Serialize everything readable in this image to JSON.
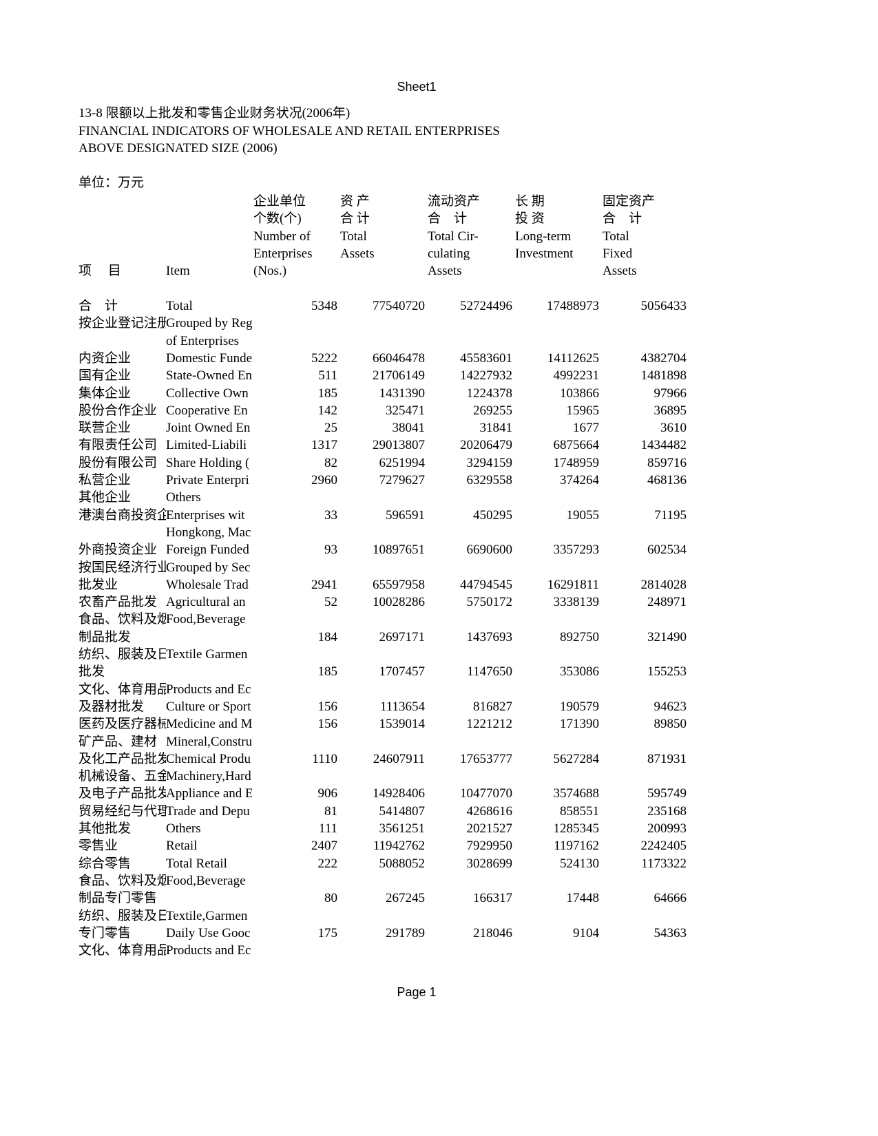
{
  "sheet_title": "Sheet1",
  "footer": "Page 1",
  "title_cn": "13-8 限额以上批发和零售企业财务状况(2006年)",
  "title_en_1": "FINANCIAL INDICATORS OF WHOLESALE AND RETAIL ENTERPRISES",
  "title_en_2": "ABOVE DESIGNATED SIZE (2006)",
  "unit": "单位：万元",
  "header": {
    "item_cn": "项　 目",
    "item_en": "Item",
    "columns": [
      {
        "lines": [
          "企业单位",
          "个数(个)",
          "Number of",
          "Enterprises",
          "(Nos.)"
        ]
      },
      {
        "lines": [
          "资 产",
          "合 计",
          "Total",
          "Assets",
          ""
        ]
      },
      {
        "lines": [
          "流动资产",
          "合　计",
          "Total Cir-",
          "culating",
          "Assets"
        ]
      },
      {
        "lines": [
          "长 期",
          "投 资",
          "Long-term",
          "Investment",
          ""
        ]
      },
      {
        "lines": [
          "固定资产",
          "合　计",
          "Total",
          "Fixed",
          "Assets"
        ]
      }
    ]
  },
  "rows": [
    {
      "cn": "合　计",
      "en": "Total",
      "values": [
        "5348",
        "77540720",
        "52724496",
        "17488973",
        "5056433"
      ]
    },
    {
      "cn": "按企业登记注册",
      "en": "Grouped by Reg",
      "values": []
    },
    {
      "cn": "",
      "en": "of Enterprises",
      "values": []
    },
    {
      "cn": "内资企业",
      "en": "Domestic Funde",
      "values": [
        "5222",
        "66046478",
        "45583601",
        "14112625",
        "4382704"
      ]
    },
    {
      "cn": "国有企业",
      "en": "State-Owned En",
      "values": [
        "511",
        "21706149",
        "14227932",
        "4992231",
        "1481898"
      ]
    },
    {
      "cn": "集体企业",
      "en": "Collective Own",
      "values": [
        "185",
        "1431390",
        "1224378",
        "103866",
        "97966"
      ]
    },
    {
      "cn": "股份合作企业",
      "en": "Cooperative En",
      "values": [
        "142",
        "325471",
        "269255",
        "15965",
        "36895"
      ]
    },
    {
      "cn": "联营企业",
      "en": "Joint Owned En",
      "values": [
        "25",
        "38041",
        "31841",
        "1677",
        "3610"
      ]
    },
    {
      "cn": "有限责任公司",
      "en": "Limited-Liabili",
      "values": [
        "1317",
        "29013807",
        "20206479",
        "6875664",
        "1434482"
      ]
    },
    {
      "cn": "股份有限公司",
      "en": "Share Holding (",
      "values": [
        "82",
        "6251994",
        "3294159",
        "1748959",
        "859716"
      ]
    },
    {
      "cn": "私营企业",
      "en": "Private Enterpri",
      "values": [
        "2960",
        "7279627",
        "6329558",
        "374264",
        "468136"
      ]
    },
    {
      "cn": "其他企业",
      "en": "Others",
      "values": []
    },
    {
      "cn": "港澳台商投资企",
      "en": "Enterprises wit",
      "values": [
        "33",
        "596591",
        "450295",
        "19055",
        "71195"
      ]
    },
    {
      "cn": "",
      "en": "Hongkong, Mac",
      "values": []
    },
    {
      "cn": "外商投资企业",
      "en": "Foreign Funded",
      "values": [
        "93",
        "10897651",
        "6690600",
        "3357293",
        "602534"
      ]
    },
    {
      "cn": "按国民经济行业",
      "en": "Grouped by Sec",
      "values": []
    },
    {
      "cn": "批发业",
      "en": "Wholesale Trad",
      "values": [
        "2941",
        "65597958",
        "44794545",
        "16291811",
        "2814028"
      ]
    },
    {
      "cn": "农畜产品批发",
      "en": "Agricultural an",
      "values": [
        "52",
        "10028286",
        "5750172",
        "3338139",
        "248971"
      ]
    },
    {
      "cn": "食品、饮料及烟",
      "en": "Food,Beverage",
      "values": []
    },
    {
      "cn": "制品批发",
      "en": "",
      "values": [
        "184",
        "2697171",
        "1437693",
        "892750",
        "321490"
      ]
    },
    {
      "cn": "纺织、服装及日",
      "en": "Textile Garmen",
      "values": []
    },
    {
      "cn": "批发",
      "en": "",
      "values": [
        "185",
        "1707457",
        "1147650",
        "353086",
        "155253"
      ]
    },
    {
      "cn": "文化、体育用品",
      "en": "Products and Ec",
      "values": []
    },
    {
      "cn": "及器材批发",
      "en": "Culture or Sport",
      "values": [
        "156",
        "1113654",
        "816827",
        "190579",
        "94623"
      ]
    },
    {
      "cn": "医药及医疗器械",
      "en": "Medicine and M",
      "values": [
        "156",
        "1539014",
        "1221212",
        "171390",
        "89850"
      ]
    },
    {
      "cn": "矿产品、建材",
      "en": "Mineral,Constru",
      "values": []
    },
    {
      "cn": "及化工产品批发",
      "en": "Chemical Produ",
      "values": [
        "1110",
        "24607911",
        "17653777",
        "5627284",
        "871931"
      ]
    },
    {
      "cn": "机械设备、五金",
      "en": "Machinery,Hard",
      "values": []
    },
    {
      "cn": "及电子产品批发",
      "en": "Appliance and E",
      "values": [
        "906",
        "14928406",
        "10477070",
        "3574688",
        "595749"
      ]
    },
    {
      "cn": "贸易经纪与代理",
      "en": "Trade and Depu",
      "values": [
        "81",
        "5414807",
        "4268616",
        "858551",
        "235168"
      ]
    },
    {
      "cn": "其他批发",
      "en": "Others",
      "values": [
        "111",
        "3561251",
        "2021527",
        "1285345",
        "200993"
      ]
    },
    {
      "cn": "零售业",
      "en": "Retail",
      "values": [
        "2407",
        "11942762",
        "7929950",
        "1197162",
        "2242405"
      ]
    },
    {
      "cn": "综合零售",
      "en": "Total Retail",
      "values": [
        "222",
        "5088052",
        "3028699",
        "524130",
        "1173322"
      ]
    },
    {
      "cn": "食品、饮料及烟",
      "en": "Food,Beverage",
      "values": []
    },
    {
      "cn": "制品专门零售",
      "en": "",
      "values": [
        "80",
        "267245",
        "166317",
        "17448",
        "64666"
      ]
    },
    {
      "cn": "纺织、服装及日",
      "en": "Textile,Garmen",
      "values": []
    },
    {
      "cn": "专门零售",
      "en": "Daily Use Gooc",
      "values": [
        "175",
        "291789",
        "218046",
        "9104",
        "54363"
      ]
    },
    {
      "cn": "文化、体育用品",
      "en": "Products and Ec",
      "values": []
    }
  ]
}
